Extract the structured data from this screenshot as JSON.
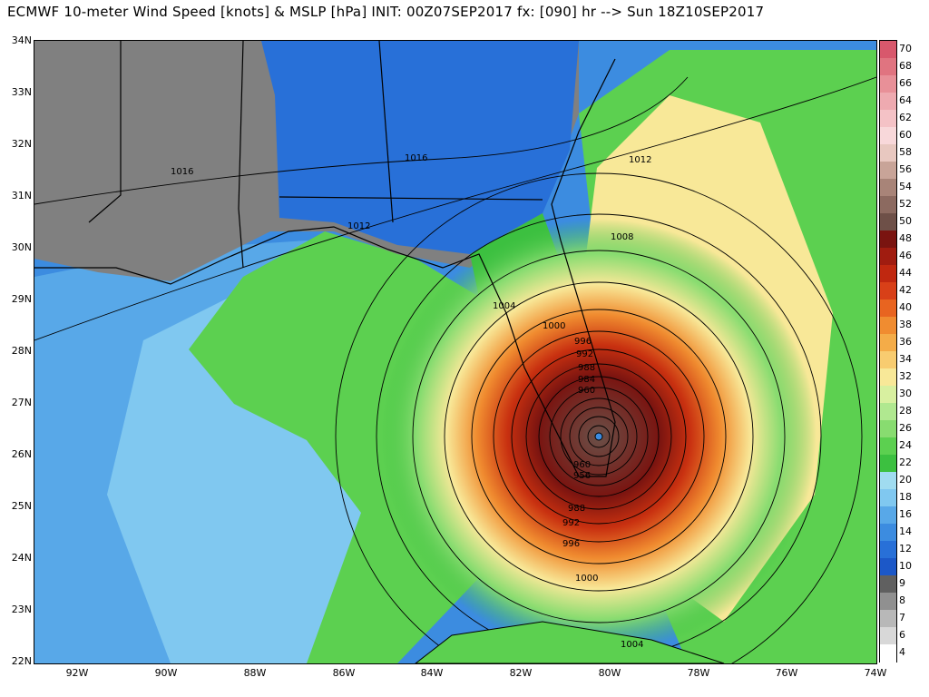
{
  "title": "ECMWF 10-meter Wind Speed [knots] &  MSLP [hPa] INIT: 00Z07SEP2017 fx: [090] hr --> Sun 18Z10SEP2017",
  "lat_labels": [
    "34N",
    "33N",
    "32N",
    "31N",
    "30N",
    "29N",
    "28N",
    "27N",
    "26N",
    "25N",
    "24N",
    "23N",
    "22N"
  ],
  "lon_labels": [
    "92W",
    "90W",
    "88W",
    "86W",
    "84W",
    "82W",
    "80W",
    "78W",
    "76W",
    "74W"
  ],
  "colorbar": {
    "labels": [
      "70",
      "68",
      "66",
      "64",
      "62",
      "60",
      "58",
      "56",
      "54",
      "52",
      "50",
      "48",
      "46",
      "44",
      "42",
      "40",
      "38",
      "36",
      "34",
      "32",
      "30",
      "28",
      "26",
      "24",
      "22",
      "20",
      "18",
      "16",
      "14",
      "12",
      "10",
      "9",
      "8",
      "7",
      "6",
      "4"
    ],
    "colors": [
      "#d8586c",
      "#e07480",
      "#e89098",
      "#eeaab0",
      "#f4c2c6",
      "#f8d8da",
      "#e8c8c0",
      "#c8a498",
      "#a88478",
      "#8c6a60",
      "#6e5048",
      "#7a1410",
      "#a01c10",
      "#c02810",
      "#d84018",
      "#e86420",
      "#f08c30",
      "#f4ac48",
      "#f8cc70",
      "#f8e898",
      "#d8f0a0",
      "#b0e890",
      "#88dc70",
      "#5cd050",
      "#3cc040",
      "#a0dcf0",
      "#80c8f0",
      "#58a8e8",
      "#3c8ce0",
      "#2870d8",
      "#1c58c8",
      "#606060",
      "#909090",
      "#b8b8b8",
      "#d8d8d8",
      "#ffffff"
    ]
  },
  "pressure_labels": [
    "1016",
    "1016",
    "1012",
    "1012",
    "1008",
    "1004",
    "1000",
    "996",
    "992",
    "988",
    "984",
    "960",
    "960",
    "956",
    "988",
    "992",
    "996",
    "1000",
    "1004"
  ]
}
